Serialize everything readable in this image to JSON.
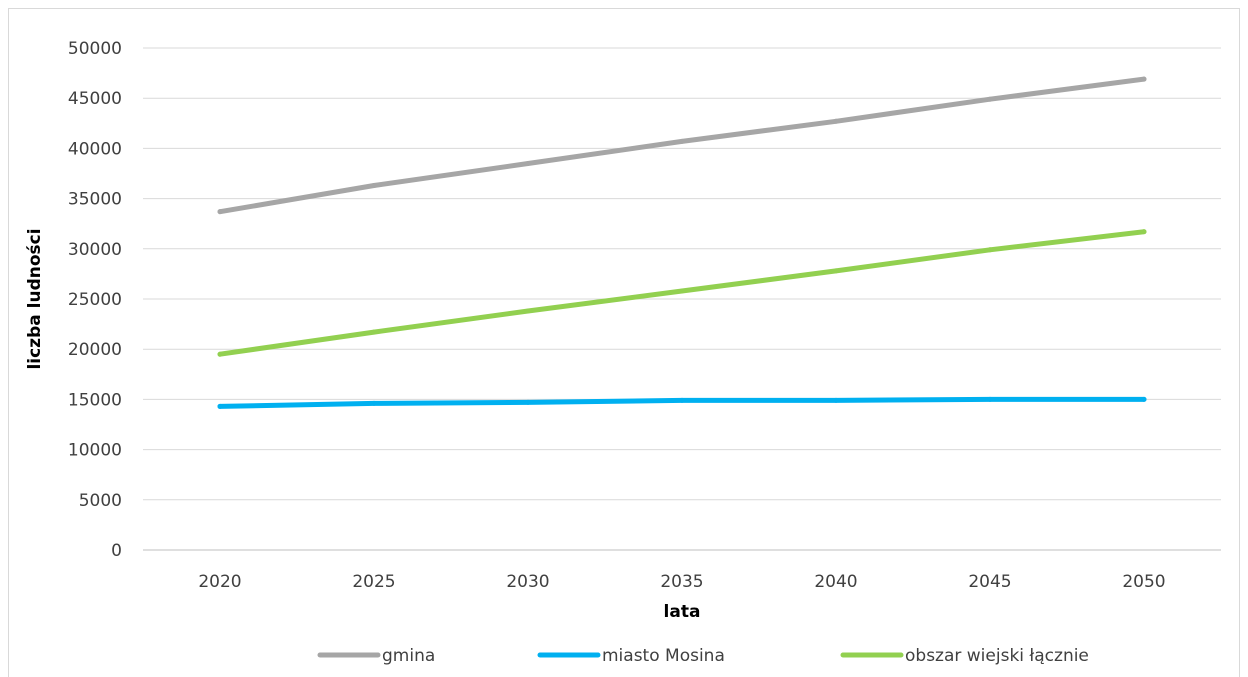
{
  "chart_data": {
    "type": "line",
    "title": "",
    "xlabel": "lata",
    "ylabel": "liczba ludności",
    "categories": [
      "2020",
      "2025",
      "2030",
      "2035",
      "2040",
      "2045",
      "2050"
    ],
    "ylim": [
      0,
      50000
    ],
    "yticks": [
      "0",
      "5000",
      "10000",
      "15000",
      "20000",
      "25000",
      "30000",
      "35000",
      "40000",
      "45000",
      "50000"
    ],
    "grid": true,
    "legend_position": "bottom",
    "series": [
      {
        "name": "gmina",
        "color": "#a6a6a6",
        "values": [
          33700,
          36300,
          38500,
          40700,
          42700,
          44900,
          46900
        ]
      },
      {
        "name": "miasto Mosina",
        "color": "#00b0f0",
        "values": [
          14300,
          14600,
          14700,
          14900,
          14900,
          15000,
          15000
        ]
      },
      {
        "name": "obszar wiejski łącznie",
        "color": "#92d050",
        "values": [
          19500,
          21700,
          23800,
          25800,
          27800,
          29900,
          31700
        ]
      }
    ]
  }
}
